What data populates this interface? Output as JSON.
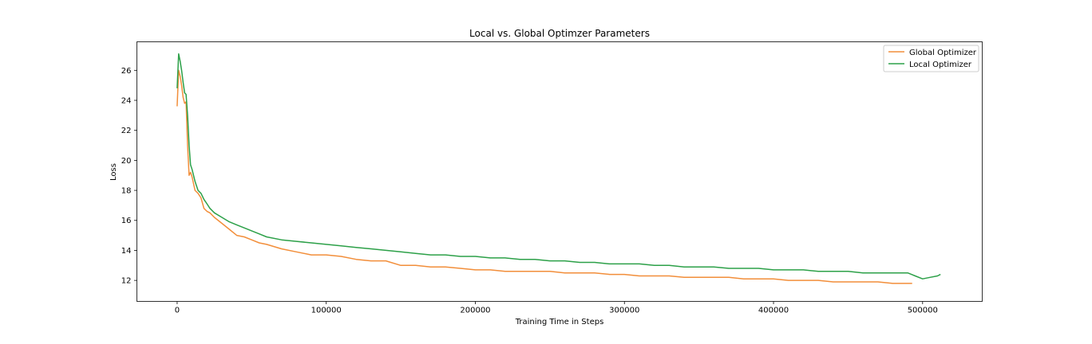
{
  "chart_data": {
    "type": "line",
    "title": "Local vs. Global Optimzer Parameters",
    "xlabel": "Training Time in Steps",
    "ylabel": "Loss",
    "xlim": [
      -27000,
      540000
    ],
    "ylim": [
      10.6,
      27.9
    ],
    "x_ticks": [
      0,
      100000,
      200000,
      300000,
      400000,
      500000
    ],
    "y_ticks": [
      12,
      14,
      16,
      18,
      20,
      22,
      24,
      26
    ],
    "grid": false,
    "legend_position": "top-right",
    "series": [
      {
        "name": "Global Optimizer",
        "color": "#f28e3a",
        "x": [
          0,
          1000,
          2000,
          3000,
          4000,
          5000,
          6000,
          7000,
          8000,
          9000,
          10000,
          12000,
          14000,
          16000,
          18000,
          20000,
          22000,
          25000,
          30000,
          35000,
          40000,
          45000,
          50000,
          55000,
          60000,
          70000,
          80000,
          90000,
          100000,
          110000,
          120000,
          130000,
          140000,
          150000,
          160000,
          170000,
          180000,
          190000,
          200000,
          210000,
          220000,
          230000,
          240000,
          250000,
          260000,
          270000,
          280000,
          290000,
          300000,
          310000,
          320000,
          330000,
          340000,
          350000,
          360000,
          370000,
          380000,
          390000,
          400000,
          410000,
          420000,
          430000,
          440000,
          450000,
          460000,
          470000,
          480000,
          490000,
          493000
        ],
        "y": [
          23.6,
          26.0,
          25.6,
          25.0,
          24.2,
          23.8,
          23.9,
          21.0,
          19.0,
          19.2,
          18.9,
          18.0,
          17.8,
          17.5,
          16.8,
          16.6,
          16.5,
          16.2,
          15.8,
          15.4,
          15.0,
          14.9,
          14.7,
          14.5,
          14.4,
          14.1,
          13.9,
          13.7,
          13.7,
          13.6,
          13.4,
          13.3,
          13.3,
          13.0,
          13.0,
          12.9,
          12.9,
          12.8,
          12.7,
          12.7,
          12.6,
          12.6,
          12.6,
          12.6,
          12.5,
          12.5,
          12.5,
          12.4,
          12.4,
          12.3,
          12.3,
          12.3,
          12.2,
          12.2,
          12.2,
          12.2,
          12.1,
          12.1,
          12.1,
          12.0,
          12.0,
          12.0,
          11.9,
          11.9,
          11.9,
          11.9,
          11.8,
          11.8,
          11.8
        ]
      },
      {
        "name": "Local Optimizer",
        "color": "#2ca048",
        "x": [
          0,
          1000,
          2000,
          3000,
          4000,
          5000,
          6000,
          7000,
          8000,
          9000,
          10000,
          12000,
          14000,
          16000,
          18000,
          20000,
          22000,
          25000,
          30000,
          35000,
          40000,
          45000,
          50000,
          55000,
          60000,
          70000,
          80000,
          90000,
          100000,
          110000,
          120000,
          130000,
          140000,
          150000,
          160000,
          170000,
          180000,
          190000,
          200000,
          210000,
          220000,
          230000,
          240000,
          250000,
          260000,
          270000,
          280000,
          290000,
          300000,
          310000,
          320000,
          330000,
          340000,
          350000,
          360000,
          370000,
          380000,
          390000,
          400000,
          410000,
          420000,
          430000,
          440000,
          450000,
          460000,
          470000,
          480000,
          490000,
          495000,
          500000,
          505000,
          510000,
          512000
        ],
        "y": [
          24.8,
          27.1,
          26.6,
          26.0,
          25.2,
          24.5,
          24.4,
          23.0,
          21.0,
          19.7,
          19.4,
          18.6,
          18.0,
          17.8,
          17.4,
          17.1,
          16.8,
          16.5,
          16.2,
          15.9,
          15.7,
          15.5,
          15.3,
          15.1,
          14.9,
          14.7,
          14.6,
          14.5,
          14.4,
          14.3,
          14.2,
          14.1,
          14.0,
          13.9,
          13.8,
          13.7,
          13.7,
          13.6,
          13.6,
          13.5,
          13.5,
          13.4,
          13.4,
          13.3,
          13.3,
          13.2,
          13.2,
          13.1,
          13.1,
          13.1,
          13.0,
          13.0,
          12.9,
          12.9,
          12.9,
          12.8,
          12.8,
          12.8,
          12.7,
          12.7,
          12.7,
          12.6,
          12.6,
          12.6,
          12.5,
          12.5,
          12.5,
          12.5,
          12.3,
          12.1,
          12.2,
          12.3,
          12.4
        ]
      }
    ]
  }
}
